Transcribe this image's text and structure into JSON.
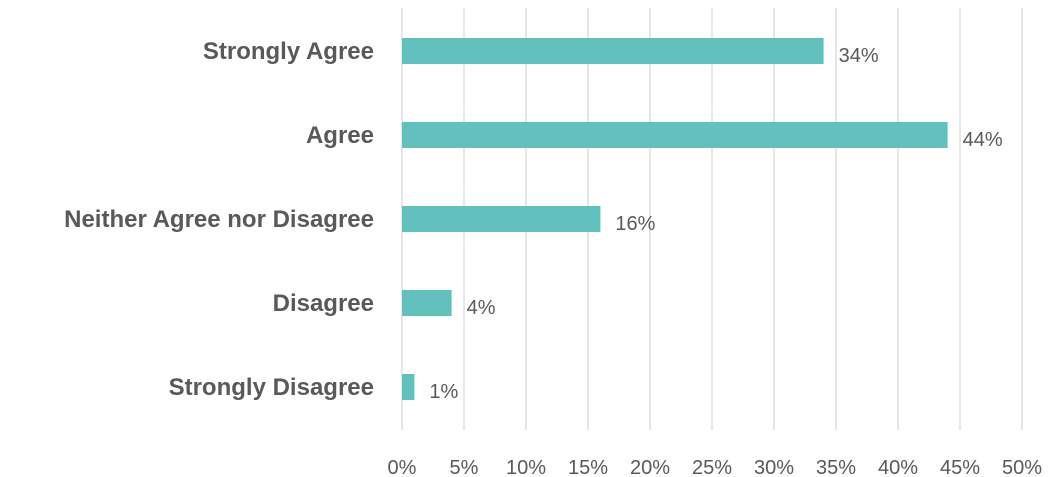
{
  "chart_data": {
    "type": "bar",
    "orientation": "horizontal",
    "categories": [
      "Strongly Agree",
      "Agree",
      "Neither Agree nor Disagree",
      "Disagree",
      "Strongly Disagree"
    ],
    "values": [
      34,
      44,
      16,
      4,
      1
    ],
    "value_labels": [
      "34%",
      "44%",
      "16%",
      "4%",
      "1%"
    ],
    "x_ticks": [
      "0%",
      "5%",
      "10%",
      "15%",
      "20%",
      "25%",
      "30%",
      "35%",
      "40%",
      "45%",
      "50%"
    ],
    "xlim": [
      0,
      50
    ],
    "grid": "vertical",
    "legend": "none",
    "title": "",
    "xlabel": "",
    "ylabel": "",
    "colors": {
      "bar": "#63c1bd",
      "grid": "#d9d9d9",
      "text": "#595959"
    }
  }
}
